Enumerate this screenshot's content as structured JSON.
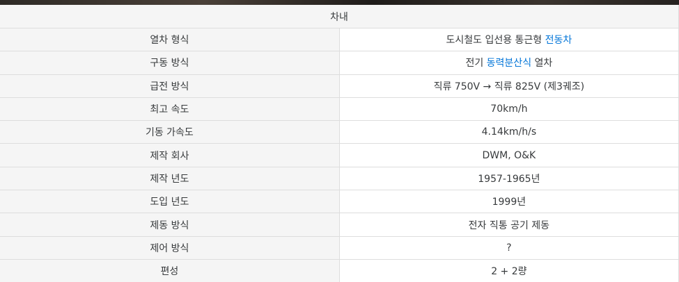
{
  "infobox": {
    "caption": "차내",
    "rows": [
      {
        "label": "열차 형식",
        "value_prefix": "도시철도 입선용 통근형 ",
        "value_link": "전동차",
        "value_suffix": ""
      },
      {
        "label": "구동 방식",
        "value_prefix": "전기 ",
        "value_link": "동력분산식",
        "value_suffix": " 열차"
      },
      {
        "label": "급전 방식",
        "value": "직류 750V → 직류 825V (제3궤조)"
      },
      {
        "label": "최고 속도",
        "value": "70km/h"
      },
      {
        "label": "기동 가속도",
        "value": "4.14km/h/s"
      },
      {
        "label": "제작 회사",
        "value": "DWM, O&K"
      },
      {
        "label": "제작 년도",
        "value": "1957-1965년"
      },
      {
        "label": "도입 년도",
        "value": "1999년"
      },
      {
        "label": "제동 방식",
        "value": "전자 직통 공기 제동"
      },
      {
        "label": "제어 방식",
        "value": "?"
      },
      {
        "label": "편성",
        "value": "2 + 2량"
      }
    ]
  },
  "colors": {
    "link": "#0275d8",
    "label_bg": "#f5f5f5",
    "border": "#dddddd",
    "text": "#373a3c"
  }
}
